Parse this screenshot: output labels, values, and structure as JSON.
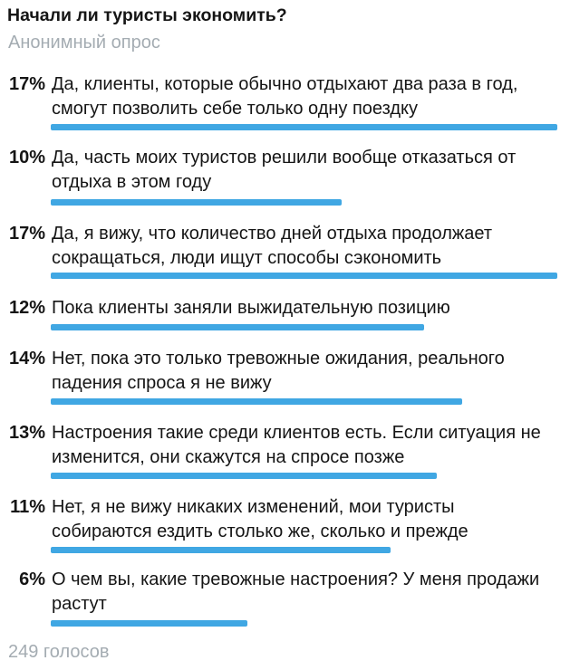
{
  "poll": {
    "question": "Начали ли туристы экономить?",
    "poll_type": "Анонимный опрос",
    "total_votes": "249 голосов",
    "options": [
      {
        "percent": "17%",
        "text": "Да, клиенты, которые обычно отдыхают два раза в год, смогут позволить себе только одну поездку",
        "lines": [
          "Да, клиенты, которые обычно отдыхают два раза в год,",
          "смогут позволить себе только одну поездку"
        ],
        "bar_ratio": 1.0
      },
      {
        "percent": "10%",
        "text": "Да, часть моих туристов решили вообще отказаться от отдыха в этом году",
        "lines": [
          "Да, часть моих туристов решили вообще отказаться от",
          "отдыха в этом году"
        ],
        "bar_ratio": 0.574
      },
      {
        "percent": "17%",
        "text": "Да, я вижу, что количество дней отдыха продолжает сокращаться, люди ищут способы сэкономить",
        "lines": [
          "Да, я вижу, что количество дней отдыха продолжает",
          "сокращаться, люди ищут способы сэкономить"
        ],
        "bar_ratio": 1.0
      },
      {
        "percent": "12%",
        "text": "Пока клиенты заняли выжидательную позицию",
        "lines": [
          "Пока клиенты заняли выжидательную позицию"
        ],
        "bar_ratio": 0.737
      },
      {
        "percent": "14%",
        "text": "Нет, пока это только тревожные ожидания, реального падения спроса я не вижу",
        "lines": [
          "Нет, пока это только тревожные ожидания, реального",
          "падения спроса я не вижу"
        ],
        "bar_ratio": 0.812
      },
      {
        "percent": "13%",
        "text": "Настроения такие среди клиентов есть. Если ситуация не изменится, они скажутся на спросе позже",
        "lines": [
          "Настроения такие среди клиентов есть. Если ситуация не",
          "изменится, они скажутся на спросе позже"
        ],
        "bar_ratio": 0.762
      },
      {
        "percent": "11%",
        "text": "Нет, я не вижу никаких изменений, мои туристы собираются ездить столько же, сколько и прежде",
        "lines": [
          "Нет, я не вижу никаких изменений, мои туристы",
          "собираются ездить столько же, сколько и прежде"
        ],
        "bar_ratio": 0.671
      },
      {
        "percent": "6%",
        "text": "О чем вы, какие тревожные настроения? У меня продажи растут",
        "lines": [
          "О чем вы, какие тревожные настроения? У меня продажи",
          "растут"
        ],
        "bar_ratio": 0.388
      }
    ]
  },
  "colors": {
    "bar": "#40a7e3",
    "text": "#151515",
    "muted": "#a4acb2",
    "background": "#ffffff"
  },
  "chart_data": {
    "type": "bar",
    "orientation": "horizontal",
    "title": "Начали ли туристы экономить?",
    "subtitle": "Анонимный опрос",
    "categories": [
      "Да, клиенты, которые обычно отдыхают два раза в год, смогут позволить себе только одну поездку",
      "Да, часть моих туристов решили вообще отказаться от отдыха в этом году",
      "Да, я вижу, что количество дней отдыха продолжает сокращаться, люди ищут способы сэкономить",
      "Пока клиенты заняли выжидательную позицию",
      "Нет, пока это только тревожные ожидания, реального падения спроса я не вижу",
      "Настроения такие среди клиентов есть. Если ситуация не изменится, они скажутся на спросе позже",
      "Нет, я не вижу никаких изменений, мои туристы собираются ездить столько же, сколько и прежде",
      "О чем вы, какие тревожные настроения? У меня продажи растут"
    ],
    "values": [
      17,
      10,
      17,
      12,
      14,
      13,
      11,
      6
    ],
    "unit": "%",
    "footer": "249 голосов"
  }
}
